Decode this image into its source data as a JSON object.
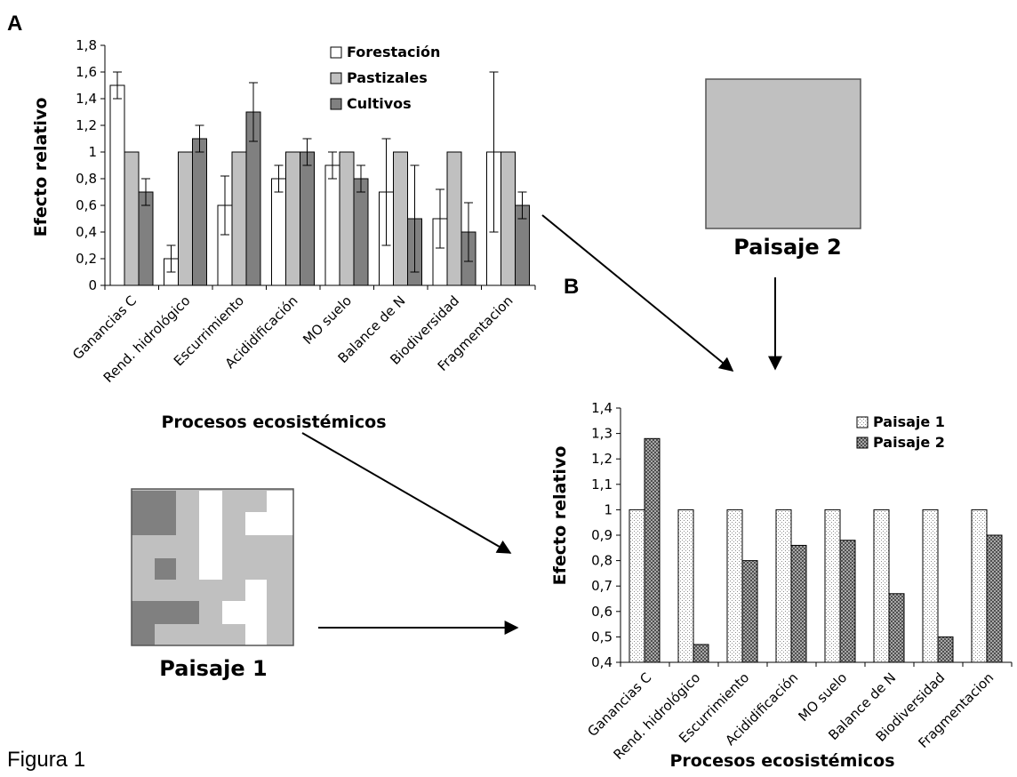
{
  "figure_caption": "Figura 1",
  "colors": {
    "forestacion": "#ffffff",
    "pastizales": "#c0c0c0",
    "cultivos": "#808080",
    "paisaje2_fill": "#c0c0c0"
  },
  "chart_data": [
    {
      "panel": "A",
      "type": "bar",
      "title": "",
      "xlabel": "Procesos ecosistémicos",
      "ylabel": "Efecto relativo",
      "ylim": [
        0,
        1.8
      ],
      "yticks": [
        "0",
        "0,2",
        "0,4",
        "0,6",
        "0,8",
        "1",
        "1,2",
        "1,4",
        "1,6",
        "1,8"
      ],
      "legend_position": "top",
      "categories": [
        "Ganancias C",
        "Rend. hidrológico",
        "Escurrimiento",
        "Acididificación",
        "MO suelo",
        "Balance de N",
        "Biodiversidad",
        "Fragmentacion"
      ],
      "series": [
        {
          "name": "Forestación",
          "values": [
            1.5,
            0.2,
            0.6,
            0.8,
            0.9,
            0.7,
            0.5,
            1.0
          ],
          "errors": [
            0.1,
            0.1,
            0.22,
            0.1,
            0.1,
            0.4,
            0.22,
            0.6
          ]
        },
        {
          "name": "Pastizales",
          "values": [
            1.0,
            1.0,
            1.0,
            1.0,
            1.0,
            1.0,
            1.0,
            1.0
          ],
          "errors": [
            0,
            0,
            0,
            0,
            0,
            0,
            0,
            0
          ]
        },
        {
          "name": "Cultivos",
          "values": [
            0.7,
            1.1,
            1.3,
            1.0,
            0.8,
            0.5,
            0.4,
            0.6
          ],
          "errors": [
            0.1,
            0.1,
            0.22,
            0.1,
            0.1,
            0.4,
            0.22,
            0.1
          ]
        }
      ]
    },
    {
      "panel": "B",
      "type": "bar",
      "title": "",
      "xlabel": "Procesos ecosistémicos",
      "ylabel": "Efecto relativo",
      "ylim": [
        0.4,
        1.4
      ],
      "yticks": [
        "0,4",
        "0,5",
        "0,6",
        "0,7",
        "0,8",
        "0,9",
        "1",
        "1,1",
        "1,2",
        "1,3",
        "1,4"
      ],
      "legend_position": "top-right",
      "categories": [
        "Ganancias C",
        "Rend. hidrológico",
        "Escurrimiento",
        "Acididificación",
        "MO suelo",
        "Balance de N",
        "Biodiversidad",
        "Fragmentacion"
      ],
      "series": [
        {
          "name": "Paisaje 1",
          "values": [
            1.0,
            1.0,
            1.0,
            1.0,
            1.0,
            1.0,
            1.0,
            1.0
          ]
        },
        {
          "name": "Paisaje 2",
          "values": [
            1.28,
            0.47,
            0.8,
            0.86,
            0.88,
            0.67,
            0.5,
            0.9
          ]
        }
      ]
    }
  ],
  "landscapes": {
    "paisaje1_label": "Paisaje 1",
    "paisaje2_label": "Paisaje 2"
  }
}
